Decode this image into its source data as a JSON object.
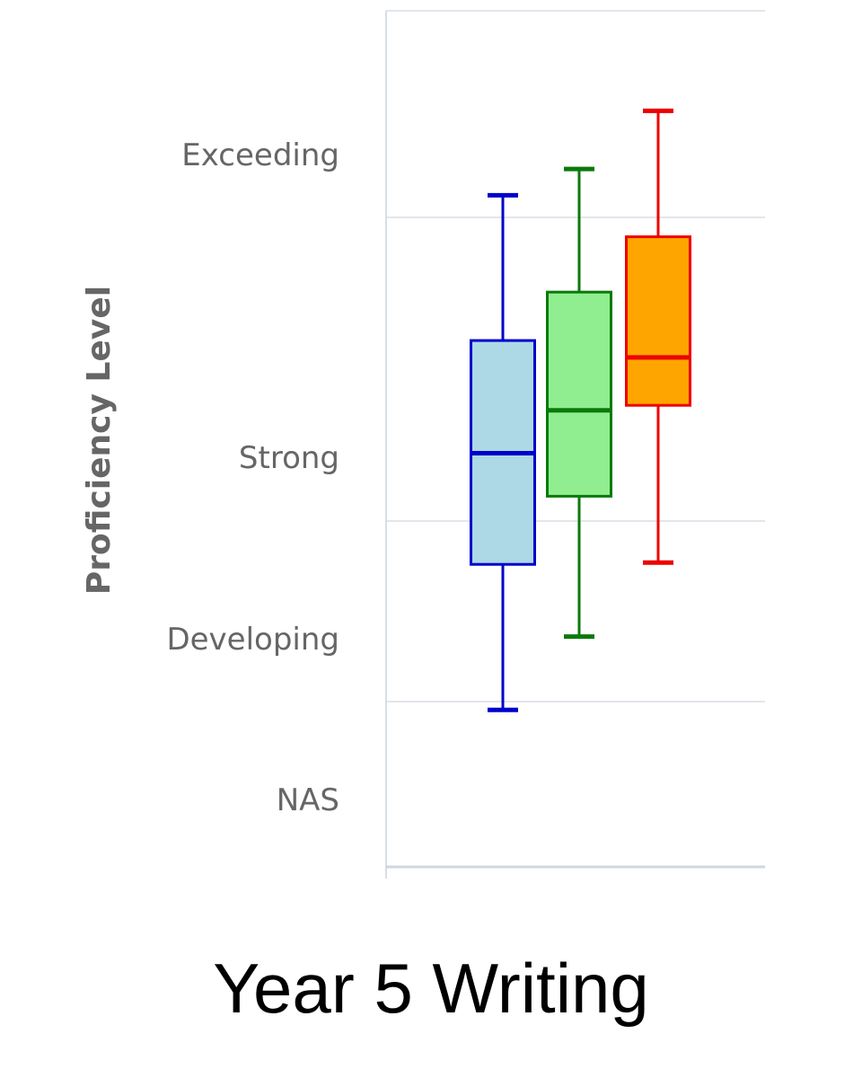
{
  "chart_data": {
    "type": "boxplot",
    "title": "Year 5 Writing",
    "ylabel": "Proficiency Level",
    "y_levels": [
      "NAS",
      "Developing",
      "Strong",
      "Exceeding"
    ],
    "ylim": [
      0,
      4
    ],
    "grid": true,
    "legend": "none",
    "series": [
      {
        "color": "#0000cc",
        "fill": "#add8e6",
        "min": 0.95,
        "q1": 1.76,
        "median": 2.41,
        "q3": 3.11,
        "max": 4.16
      },
      {
        "color": "#0a7a0a",
        "fill": "#90ee90",
        "min": 1.36,
        "q1": 2.15,
        "median": 2.67,
        "q3": 3.46,
        "max": 4.35
      },
      {
        "color": "#ee0000",
        "fill": "#ffa500",
        "min": 1.77,
        "q1": 2.7,
        "median": 2.99,
        "q3": 3.86,
        "max": 4.77
      }
    ]
  }
}
